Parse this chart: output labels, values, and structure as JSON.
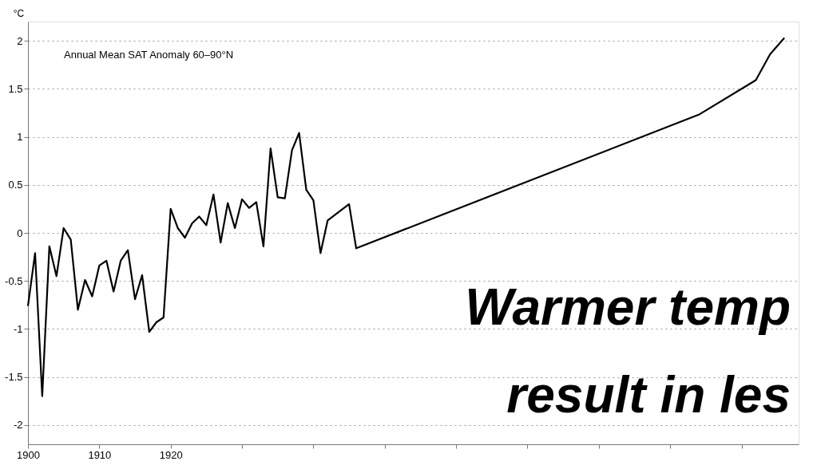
{
  "chart_data": {
    "type": "line",
    "title": "Annual Mean SAT Anomaly 60–90°N",
    "ylabel": "°C",
    "x": [
      1900,
      1901,
      1902,
      1903,
      1904,
      1905,
      1906,
      1907,
      1908,
      1909,
      1910,
      1911,
      1912,
      1913,
      1914,
      1915,
      1916,
      1917,
      1918,
      1919,
      1920,
      1921,
      1922,
      1923,
      1924,
      1925,
      1926,
      1927,
      1928,
      1929,
      1930,
      1931,
      1932,
      1933,
      1934,
      1935,
      1936,
      1937,
      1938,
      1939,
      1940,
      1941,
      1942,
      1943,
      1944,
      1945,
      1946,
      1994,
      2002,
      2004,
      2006
    ],
    "series": [
      {
        "color": "#000000",
        "values": [
          -0.76,
          -0.21,
          -1.7,
          -0.14,
          -0.45,
          0.05,
          -0.07,
          -0.8,
          -0.49,
          -0.66,
          -0.34,
          -0.29,
          -0.61,
          -0.29,
          -0.18,
          -0.69,
          -0.44,
          -1.03,
          -0.93,
          -0.88,
          0.25,
          0.05,
          -0.05,
          0.1,
          0.17,
          0.08,
          0.4,
          -0.1,
          0.31,
          0.05,
          0.35,
          0.26,
          0.32,
          -0.14,
          0.88,
          0.37,
          0.36,
          0.86,
          1.04,
          0.45,
          0.34,
          -0.21,
          0.13,
          null,
          null,
          0.3,
          -0.16,
          1.23,
          1.59,
          1.86,
          2.03
        ]
      }
    ],
    "xlim": [
      1900,
      2008
    ],
    "xticks": [
      1900,
      1910,
      1920,
      {
        "value": 1930,
        "label": null
      },
      {
        "value": 1940,
        "label": null
      },
      {
        "value": 1950,
        "label": null
      },
      {
        "value": 1960,
        "label": null
      },
      {
        "value": 1970,
        "label": null
      },
      {
        "value": 1980,
        "label": null
      },
      {
        "value": 1990,
        "label": null
      },
      {
        "value": 2000,
        "label": null
      }
    ],
    "ylim": [
      -2.2,
      2.2
    ],
    "yticks": [
      -2,
      -1.5,
      -1,
      -0.5,
      0,
      0.5,
      1,
      1.5,
      2
    ],
    "grid": "y",
    "legend": false,
    "marker": "none",
    "line_style": "solid",
    "annotations": [
      "Warmer temp",
      "result in les"
    ]
  }
}
